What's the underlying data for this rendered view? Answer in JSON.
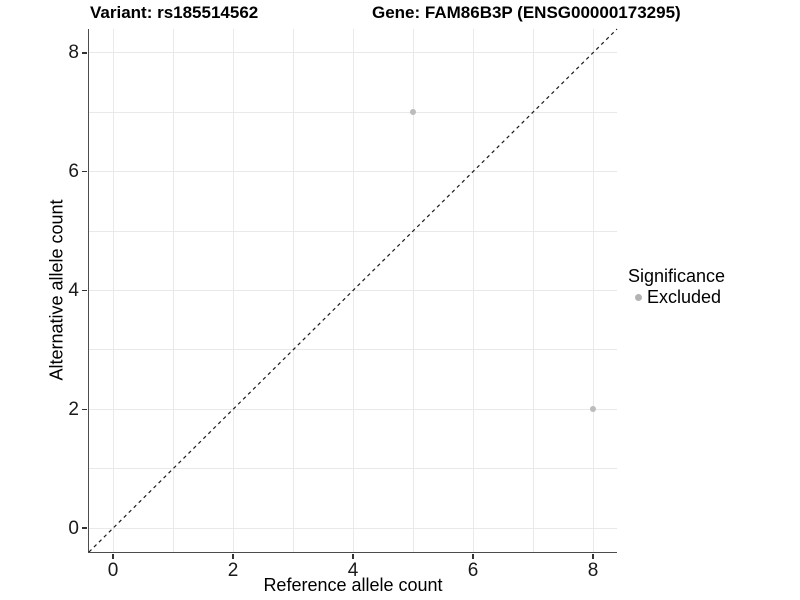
{
  "header": {
    "variant_title": "Variant: rs185514562",
    "gene_title": "Gene: FAM86B3P (ENSG00000173295)"
  },
  "chart_data": {
    "type": "scatter",
    "title_left": "Variant: rs185514562",
    "title_right": "Gene: FAM86B3P (ENSG00000173295)",
    "xlabel": "Reference allele count",
    "ylabel": "Alternative allele count",
    "xlim": [
      -0.4,
      8.4
    ],
    "ylim": [
      -0.4,
      8.4
    ],
    "xticks": [
      0,
      2,
      4,
      6,
      8
    ],
    "yticks": [
      0,
      2,
      4,
      6,
      8
    ],
    "gridline_values": [
      0,
      1,
      2,
      3,
      4,
      5,
      6,
      7,
      8
    ],
    "grid": true,
    "series": [
      {
        "name": "Excluded",
        "points": [
          {
            "x": 5,
            "y": 7
          },
          {
            "x": 8,
            "y": 2
          }
        ]
      }
    ],
    "reference_line": {
      "slope": 1,
      "intercept": 0,
      "style": "dashed",
      "color": "#1a1a1a"
    },
    "legend": {
      "position": "right",
      "title": "Significance",
      "entries": [
        {
          "label": "Excluded",
          "color": "#b3b3b3",
          "marker": "dot"
        }
      ]
    },
    "colors": {
      "point": "#bcbcbc",
      "grid": "#e9e9e9",
      "axis_line": "#4d4d4d",
      "tick": "#333333",
      "text": "#000000"
    }
  }
}
